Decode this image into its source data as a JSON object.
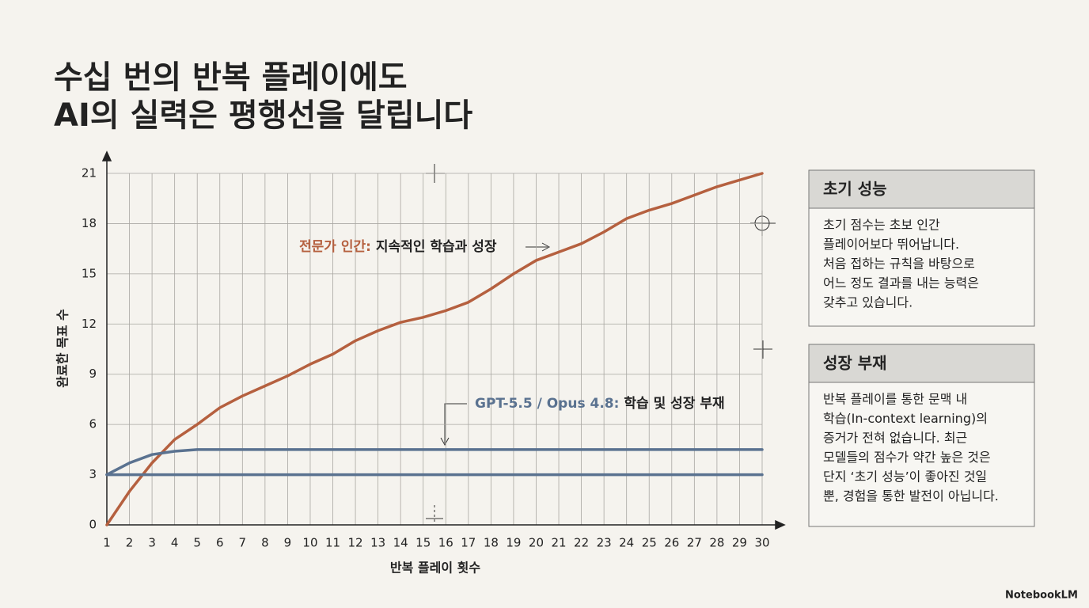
{
  "header": {
    "title_lines": [
      "수십 번의 반복 플레이에도",
      "AI의 실력은 평행선을 달립니다"
    ]
  },
  "chart_data": {
    "type": "line",
    "x_label": "반복 플레이 횟수",
    "y_label": "완료한 목표 수",
    "x": [
      1,
      2,
      3,
      4,
      5,
      6,
      7,
      8,
      9,
      10,
      11,
      12,
      13,
      14,
      15,
      16,
      17,
      18,
      19,
      20,
      21,
      22,
      23,
      24,
      25,
      26,
      27,
      28,
      29,
      30
    ],
    "xlim": [
      1,
      30
    ],
    "xticks": [
      1,
      2,
      3,
      4,
      5,
      6,
      7,
      8,
      9,
      10,
      11,
      12,
      13,
      14,
      15,
      16,
      17,
      18,
      19,
      20,
      21,
      22,
      23,
      24,
      25,
      26,
      27,
      28,
      29,
      30
    ],
    "ylim": [
      0,
      21
    ],
    "yticks": [
      0,
      3,
      6,
      9,
      12,
      15,
      18,
      21
    ],
    "grid": true,
    "series": [
      {
        "color": "#b5603f",
        "values": [
          0,
          2.0,
          3.7,
          5.1,
          6.0,
          7.0,
          7.7,
          8.3,
          8.9,
          9.6,
          10.2,
          11.0,
          11.6,
          12.1,
          12.4,
          12.8,
          13.3,
          14.1,
          15.0,
          15.8,
          16.3,
          16.8,
          17.5,
          18.3,
          18.8,
          19.2,
          19.7,
          20.2,
          20.6,
          21
        ]
      },
      {
        "color": "#5a7290",
        "values": [
          3,
          3.7,
          4.2,
          4.4,
          4.5,
          4.5,
          4.5,
          4.5,
          4.5,
          4.5,
          4.5,
          4.5,
          4.5,
          4.5,
          4.5,
          4.5,
          4.5,
          4.5,
          4.5,
          4.5,
          4.5,
          4.5,
          4.5,
          4.5,
          4.5,
          4.5,
          4.5,
          4.5,
          4.5,
          4.5
        ]
      },
      {
        "color": "#5a7290",
        "values": [
          3,
          3,
          3,
          3,
          3,
          3,
          3,
          3,
          3,
          3,
          3,
          3,
          3,
          3,
          3,
          3,
          3,
          3,
          3,
          3,
          3,
          3,
          3,
          3,
          3,
          3,
          3,
          3,
          3,
          3
        ]
      }
    ],
    "annotations": [
      {
        "lead": "전문가 인간:",
        "text": "지속적인 학습과 성장",
        "color": "#b5603f"
      },
      {
        "lead": "GPT-5.5 / Opus 4.8:",
        "text": "학습 및 성장 부재",
        "color": "#5a7290"
      }
    ]
  },
  "panels": [
    {
      "title": "초기 성능",
      "lines": [
        "초기 점수는 초보 인간",
        "플레이어보다 뛰어납니다.",
        "처음 접하는 규칙을 바탕으로",
        "어느 정도 결과를 내는 능력은",
        "갖추고 있습니다."
      ]
    },
    {
      "title": "성장 부재",
      "lines": [
        "반복 플레이를 통한 문맥 내",
        "학습(In-context learning)의",
        "증거가 전혀 없습니다. 최근",
        "모델들의 점수가 약간 높은 것은",
        "단지 ‘초기 성능’이 좋아진 것일",
        "뿐, 경험을 통한 발전이 아닙니다."
      ]
    }
  ],
  "brand": "NotebookLM"
}
